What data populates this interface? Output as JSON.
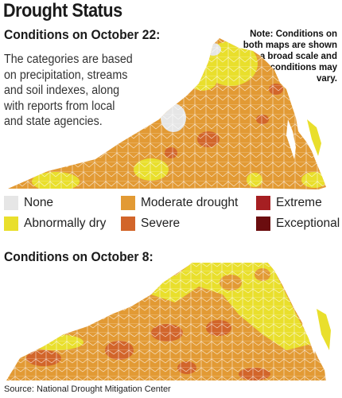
{
  "title": "Drought Status",
  "panel1": {
    "heading": "Conditions on October 22:",
    "description": "The categories are based on precipitation, streams and soil indexes, along with reports from local and state agencies.",
    "note": "Note: Conditions on both maps are shown in a broad scale and local conditions may vary."
  },
  "panel2": {
    "heading": "Conditions on October 8:"
  },
  "legend": [
    {
      "label": "None",
      "color": "#e6e6e6"
    },
    {
      "label": "Abnormally dry",
      "color": "#e9df2c"
    },
    {
      "label": "Moderate drought",
      "color": "#e29a34"
    },
    {
      "label": "Severe",
      "color": "#d2652a"
    },
    {
      "label": "Extreme",
      "color": "#a61f22"
    },
    {
      "label": "Exceptional",
      "color": "#6b0d0f"
    }
  ],
  "source": "Source: National Drought Mitigation Center"
}
